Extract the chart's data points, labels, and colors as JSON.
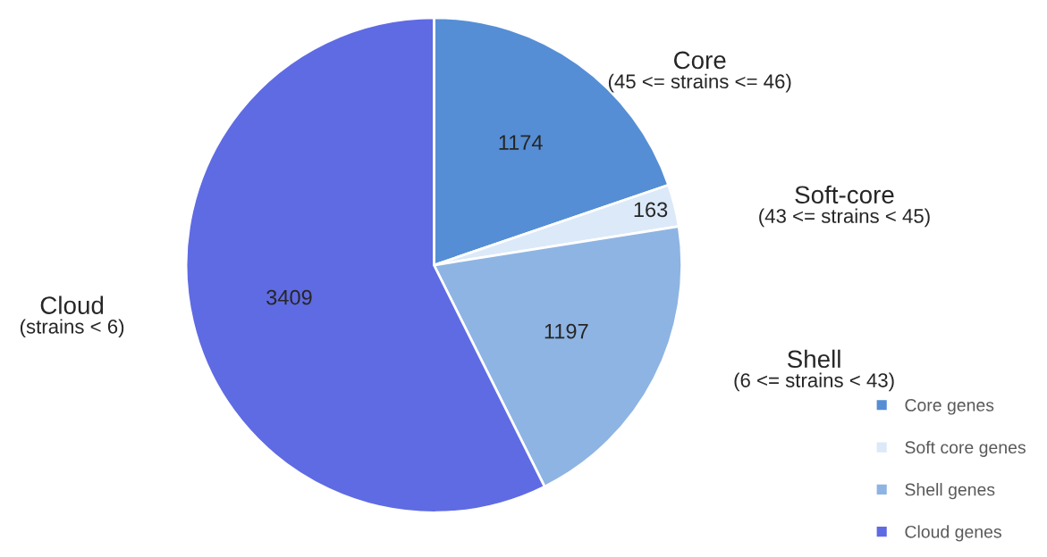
{
  "chart_data": {
    "type": "pie",
    "categories": [
      "Core genes",
      "Soft core genes",
      "Shell genes",
      "Cloud genes"
    ],
    "values": [
      1174,
      163,
      1197,
      3409
    ],
    "colors": [
      "#558ed5",
      "#dce9f8",
      "#8eb4e3",
      "#5f6be3"
    ],
    "data_labels": true,
    "annotations": [
      "Core\n(45 <= strains <= 46)",
      "Soft-core\n(43 <= strains < 45)",
      "Shell\n(6 <= strains < 43)",
      "Cloud\n(strains < 6)"
    ],
    "legend": "bottom right"
  }
}
